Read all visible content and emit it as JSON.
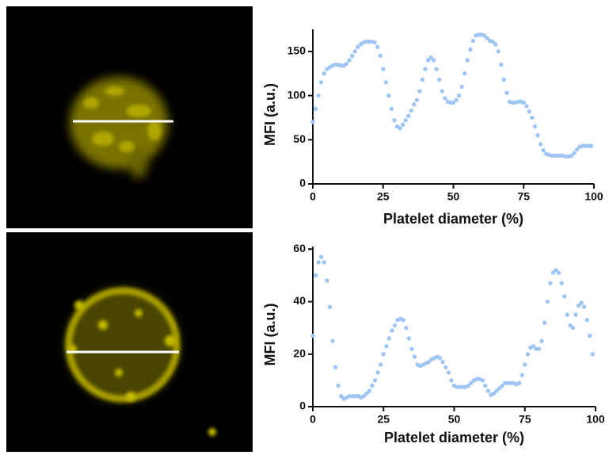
{
  "chart_data": [
    {
      "type": "scatter",
      "xlabel": "Platelet diameter (%)",
      "ylabel": "MFI (a.u.)",
      "color": "#9fc5f2",
      "xlim": [
        0,
        100
      ],
      "ylim": [
        0,
        175
      ],
      "xticks": [
        0,
        25,
        50,
        75,
        100
      ],
      "yticks": [
        0,
        50,
        100,
        150
      ],
      "x": [
        0,
        1,
        2,
        3,
        4,
        5,
        6,
        7,
        8,
        9,
        10,
        11,
        12,
        13,
        14,
        15,
        16,
        17,
        18,
        19,
        20,
        21,
        22,
        23,
        24,
        25,
        26,
        27,
        28,
        29,
        30,
        31,
        32,
        33,
        34,
        35,
        36,
        37,
        38,
        39,
        40,
        41,
        42,
        43,
        44,
        45,
        46,
        47,
        48,
        49,
        50,
        51,
        52,
        53,
        54,
        55,
        56,
        57,
        58,
        59,
        60,
        61,
        62,
        63,
        64,
        65,
        66,
        67,
        68,
        69,
        70,
        71,
        72,
        73,
        74,
        75,
        76,
        77,
        78,
        79,
        80,
        81,
        82,
        83,
        84,
        85,
        86,
        87,
        88,
        89,
        90,
        91,
        92,
        93,
        94,
        95,
        96,
        97,
        98,
        99
      ],
      "values": [
        70,
        85,
        100,
        115,
        125,
        130,
        132,
        134,
        135,
        135,
        134,
        134,
        136,
        140,
        145,
        150,
        155,
        158,
        160,
        161,
        161,
        161,
        160,
        155,
        145,
        130,
        115,
        100,
        85,
        72,
        65,
        63,
        67,
        72,
        77,
        83,
        90,
        95,
        105,
        118,
        130,
        140,
        143,
        140,
        130,
        118,
        105,
        97,
        93,
        92,
        92,
        95,
        100,
        110,
        125,
        140,
        152,
        162,
        168,
        169,
        169,
        168,
        165,
        162,
        161,
        158,
        150,
        135,
        118,
        103,
        93,
        92,
        92,
        93,
        93,
        92,
        88,
        82,
        75,
        65,
        55,
        45,
        38,
        34,
        33,
        32,
        32,
        32,
        32,
        32,
        31,
        31,
        32,
        35,
        39,
        42,
        43,
        43,
        43,
        43
      ]
    },
    {
      "type": "scatter",
      "xlabel": "Platelet diameter (%)",
      "ylabel": "MFI (a.u.)",
      "color": "#9fc5f2",
      "xlim": [
        0,
        100
      ],
      "ylim": [
        0,
        61
      ],
      "xticks": [
        0,
        25,
        50,
        75,
        100
      ],
      "yticks": [
        0,
        20,
        40,
        60
      ],
      "x": [
        0,
        1,
        2,
        3,
        4,
        5,
        6,
        7,
        8,
        9,
        10,
        11,
        12,
        13,
        14,
        15,
        16,
        17,
        18,
        19,
        20,
        21,
        22,
        23,
        24,
        25,
        26,
        27,
        28,
        29,
        30,
        31,
        32,
        33,
        34,
        35,
        36,
        37,
        38,
        39,
        40,
        41,
        42,
        43,
        44,
        45,
        46,
        47,
        48,
        49,
        50,
        51,
        52,
        53,
        54,
        55,
        56,
        57,
        58,
        59,
        60,
        61,
        62,
        63,
        64,
        65,
        66,
        67,
        68,
        69,
        70,
        71,
        72,
        73,
        74,
        75,
        76,
        77,
        78,
        79,
        80,
        81,
        82,
        83,
        84,
        85,
        86,
        87,
        88,
        89,
        90,
        91,
        92,
        93,
        94,
        95,
        96,
        97,
        98,
        99
      ],
      "values": [
        27,
        50,
        55,
        57,
        55,
        48,
        38,
        25,
        15,
        8,
        4,
        3,
        3.5,
        4,
        4,
        4,
        4,
        3.5,
        4,
        5,
        6,
        8,
        10,
        13,
        16,
        20,
        23,
        26,
        29,
        31,
        33,
        33.5,
        33,
        30,
        26,
        22,
        19,
        16,
        15.5,
        16,
        16.5,
        17,
        18,
        18.5,
        19,
        18.5,
        17,
        15,
        13,
        10,
        8,
        7.5,
        7.5,
        7.5,
        7.5,
        8,
        9,
        10,
        10.5,
        10.5,
        10,
        8,
        6,
        4.5,
        5,
        6,
        7,
        8,
        9,
        9,
        9,
        9,
        8.5,
        9,
        12,
        16,
        20,
        22.5,
        23,
        22,
        22,
        25,
        32,
        40,
        47,
        51,
        52,
        51,
        47,
        42,
        35,
        31,
        30,
        35,
        38.5,
        39.5,
        38,
        33,
        27,
        20
      ]
    }
  ]
}
